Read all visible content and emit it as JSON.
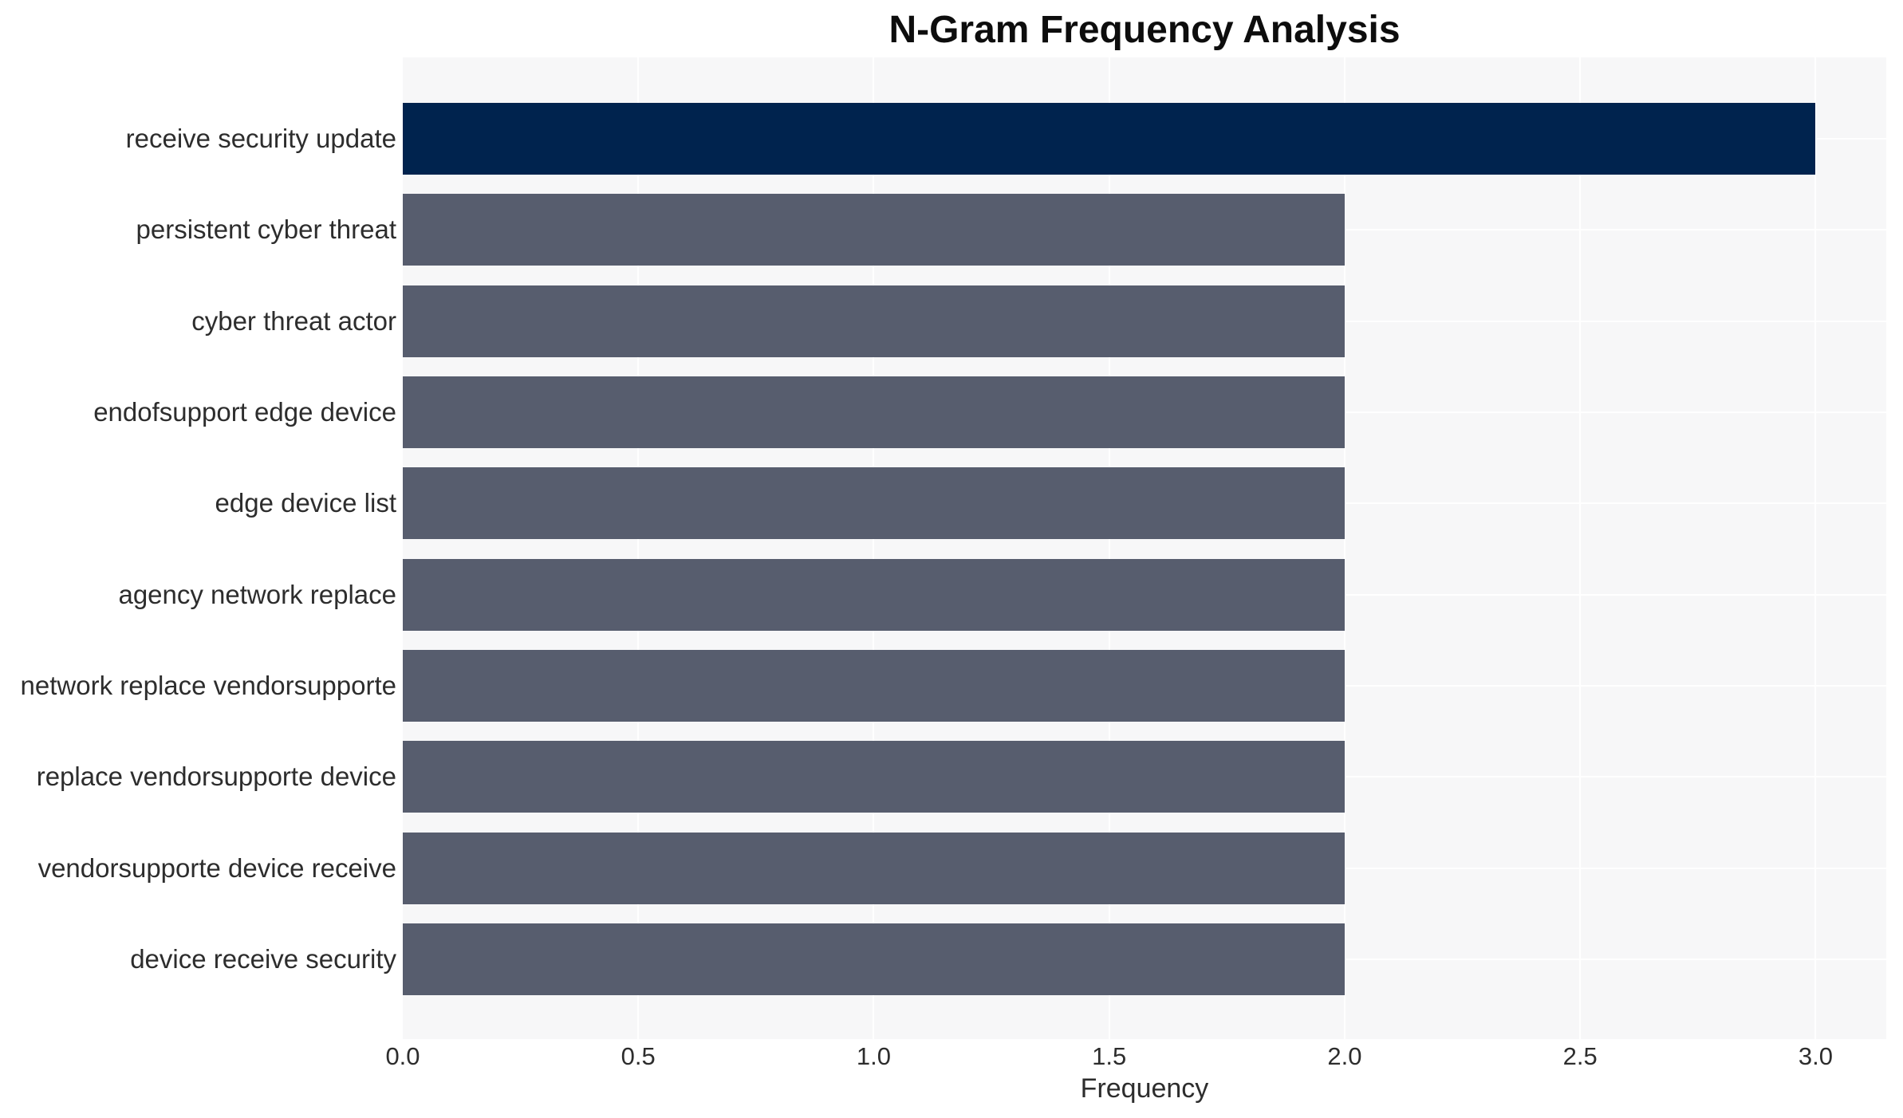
{
  "chart_data": {
    "type": "bar",
    "orientation": "horizontal",
    "title": "N-Gram Frequency Analysis",
    "xlabel": "Frequency",
    "ylabel": "",
    "categories": [
      "receive security update",
      "persistent cyber threat",
      "cyber threat actor",
      "endofsupport edge device",
      "edge device list",
      "agency network replace",
      "network replace vendorsupporte",
      "replace vendorsupporte device",
      "vendorsupporte device receive",
      "device receive security"
    ],
    "values": [
      3,
      2,
      2,
      2,
      2,
      2,
      2,
      2,
      2,
      2
    ],
    "x_ticks": [
      "0.0",
      "0.5",
      "1.0",
      "1.5",
      "2.0",
      "2.5",
      "3.0"
    ],
    "x_tick_values": [
      0.0,
      0.5,
      1.0,
      1.5,
      2.0,
      2.5,
      3.0
    ],
    "xlim": [
      0,
      3.15
    ],
    "grid": true,
    "legend": false,
    "highlight_index": 0,
    "colors": {
      "highlight_bar": "#00234e",
      "default_bar": "#575d6e",
      "plot_background": "#f7f7f8",
      "gridline": "#ffffff",
      "tick_label": "#2d2d2d",
      "title": "#0d0d0d"
    }
  }
}
